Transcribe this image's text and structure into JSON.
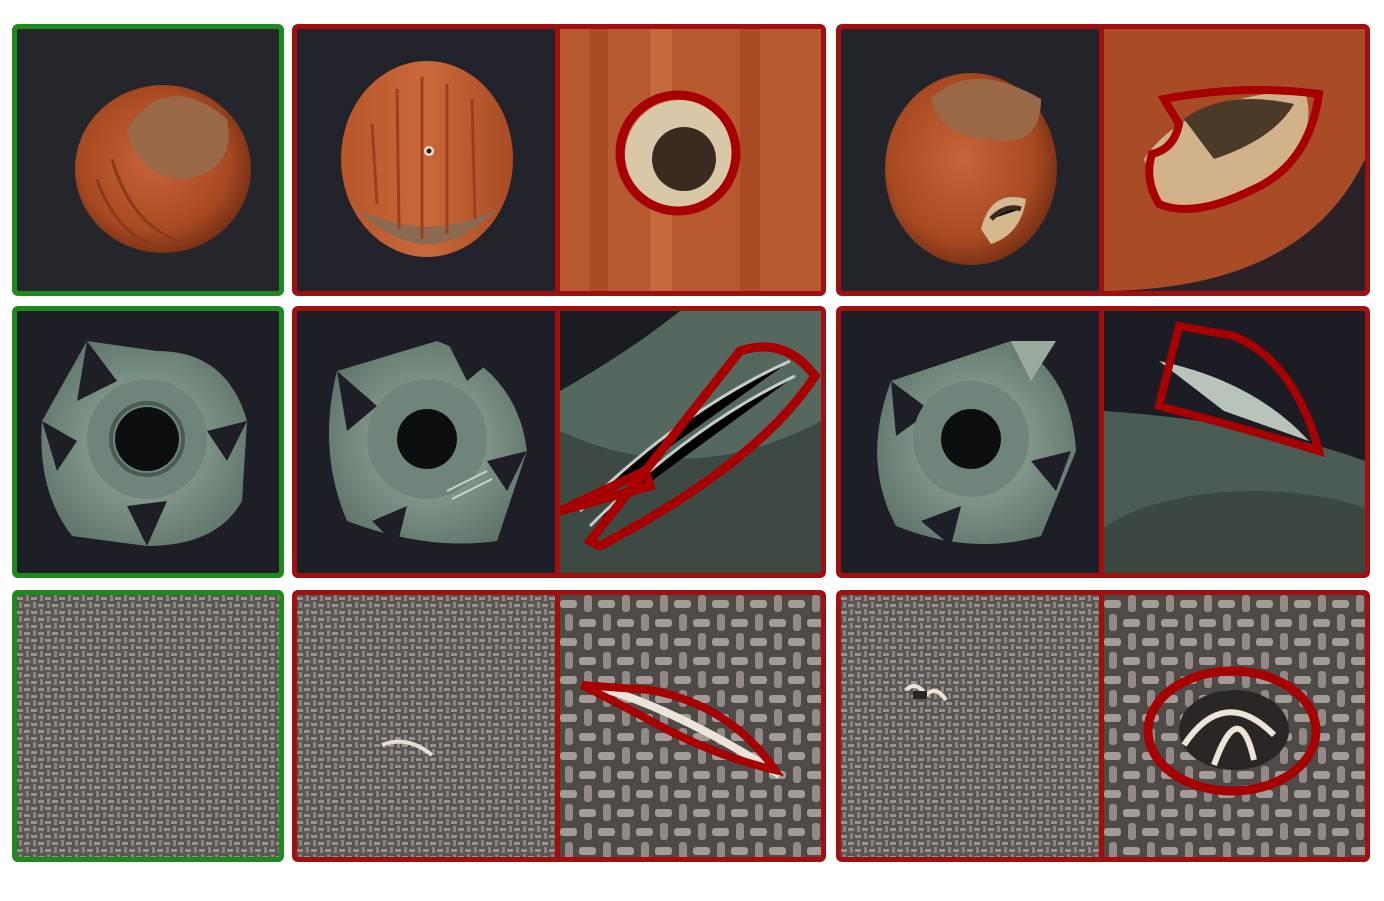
{
  "figure": {
    "colors": {
      "normal_frame": "#1c8a1c",
      "anomaly_frame": "#a01010",
      "annotation_contour": "#a80000"
    },
    "rows": [
      {
        "category": "hazelnut",
        "samples": [
          {
            "kind": "normal",
            "panels": [
              "full"
            ]
          },
          {
            "kind": "anomaly",
            "defect": "hole",
            "panels": [
              "full",
              "zoom-with-contour"
            ]
          },
          {
            "kind": "anomaly",
            "defect": "crack",
            "panels": [
              "full",
              "zoom-with-contour"
            ]
          }
        ]
      },
      {
        "category": "metal-nut",
        "samples": [
          {
            "kind": "normal",
            "panels": [
              "full"
            ]
          },
          {
            "kind": "anomaly",
            "defect": "scratch",
            "panels": [
              "full",
              "zoom-with-contour"
            ]
          },
          {
            "kind": "anomaly",
            "defect": "bent",
            "panels": [
              "full",
              "zoom-with-contour"
            ]
          }
        ]
      },
      {
        "category": "carpet",
        "samples": [
          {
            "kind": "normal",
            "panels": [
              "full"
            ]
          },
          {
            "kind": "anomaly",
            "defect": "thread",
            "panels": [
              "full",
              "zoom-with-contour"
            ]
          },
          {
            "kind": "anomaly",
            "defect": "hole",
            "panels": [
              "full",
              "zoom-with-contour"
            ]
          }
        ]
      }
    ]
  }
}
